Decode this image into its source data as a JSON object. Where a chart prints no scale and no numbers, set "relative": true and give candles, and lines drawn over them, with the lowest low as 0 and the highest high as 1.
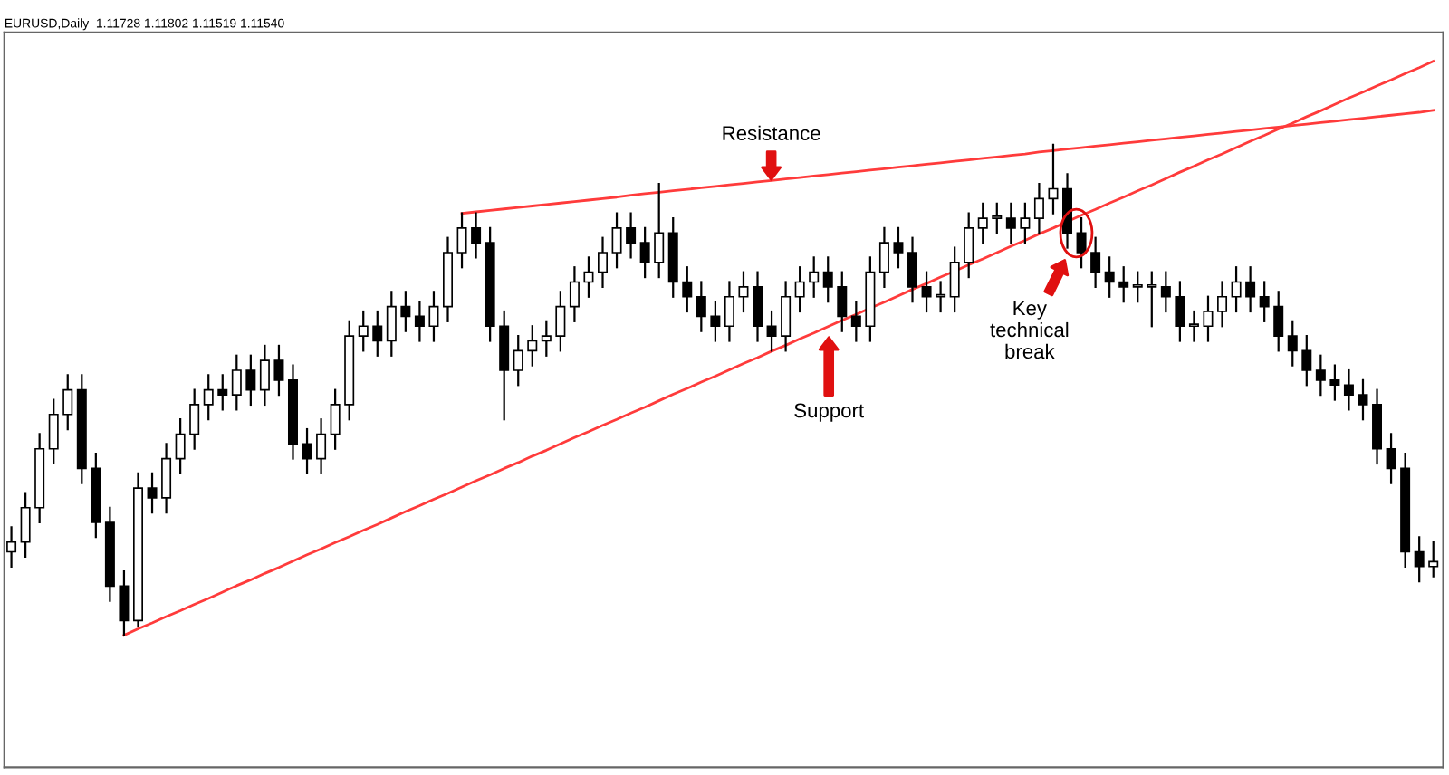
{
  "chart_data": {
    "type": "candlestick",
    "title": "EURUSD,Daily  1.11728 1.11802 1.11519 1.11540",
    "relative": true,
    "categories": [
      null,
      null,
      null,
      null,
      null,
      null,
      null,
      null,
      null,
      null,
      null,
      null,
      null,
      null,
      null,
      null,
      null,
      null,
      null,
      null,
      null,
      null,
      null,
      null,
      null,
      null,
      null,
      null,
      null,
      null,
      null,
      null,
      null,
      null,
      null,
      null,
      null,
      null,
      null,
      null,
      null,
      null,
      null,
      null,
      null,
      null,
      null,
      null,
      null,
      null,
      null,
      null,
      null,
      null,
      null,
      null,
      null,
      null,
      null,
      null,
      null,
      null,
      null,
      null,
      null,
      null,
      null,
      null,
      null,
      null,
      null,
      null,
      null,
      null,
      null,
      null,
      null,
      null,
      null,
      null,
      null,
      null,
      null,
      null,
      null,
      null,
      null,
      null,
      null,
      null,
      null,
      null,
      null,
      null,
      null,
      null,
      null,
      null,
      null,
      null,
      null,
      null
    ],
    "ohlc": [
      [
        0.17,
        0.22,
        0.14,
        0.19
      ],
      [
        0.19,
        0.29,
        0.16,
        0.26
      ],
      [
        0.26,
        0.41,
        0.23,
        0.38
      ],
      [
        0.38,
        0.48,
        0.35,
        0.45
      ],
      [
        0.45,
        0.53,
        0.42,
        0.5
      ],
      [
        0.5,
        0.53,
        0.31,
        0.34
      ],
      [
        0.34,
        0.37,
        0.2,
        0.23
      ],
      [
        0.23,
        0.26,
        0.07,
        0.1
      ],
      [
        0.1,
        0.13,
        0.0,
        0.03
      ],
      [
        0.03,
        0.33,
        0.02,
        0.3
      ],
      [
        0.3,
        0.33,
        0.25,
        0.28
      ],
      [
        0.28,
        0.39,
        0.25,
        0.36
      ],
      [
        0.36,
        0.44,
        0.33,
        0.41
      ],
      [
        0.41,
        0.5,
        0.38,
        0.47
      ],
      [
        0.47,
        0.53,
        0.44,
        0.5
      ],
      [
        0.5,
        0.53,
        0.46,
        0.49
      ],
      [
        0.49,
        0.57,
        0.46,
        0.54
      ],
      [
        0.54,
        0.57,
        0.47,
        0.5
      ],
      [
        0.5,
        0.59,
        0.47,
        0.56
      ],
      [
        0.56,
        0.59,
        0.49,
        0.52
      ],
      [
        0.52,
        0.55,
        0.36,
        0.39
      ],
      [
        0.39,
        0.42,
        0.33,
        0.36
      ],
      [
        0.36,
        0.44,
        0.33,
        0.41
      ],
      [
        0.41,
        0.5,
        0.38,
        0.47
      ],
      [
        0.47,
        0.64,
        0.44,
        0.61
      ],
      [
        0.61,
        0.66,
        0.58,
        0.63
      ],
      [
        0.63,
        0.66,
        0.57,
        0.6
      ],
      [
        0.6,
        0.7,
        0.57,
        0.67
      ],
      [
        0.67,
        0.7,
        0.62,
        0.65
      ],
      [
        0.65,
        0.68,
        0.6,
        0.63
      ],
      [
        0.63,
        0.7,
        0.6,
        0.67
      ],
      [
        0.67,
        0.81,
        0.64,
        0.78
      ],
      [
        0.78,
        0.86,
        0.75,
        0.83
      ],
      [
        0.83,
        0.86,
        0.77,
        0.8
      ],
      [
        0.8,
        0.83,
        0.6,
        0.63
      ],
      [
        0.63,
        0.66,
        0.44,
        0.54
      ],
      [
        0.54,
        0.61,
        0.51,
        0.58
      ],
      [
        0.58,
        0.63,
        0.55,
        0.6
      ],
      [
        0.6,
        0.64,
        0.57,
        0.61
      ],
      [
        0.61,
        0.7,
        0.58,
        0.67
      ],
      [
        0.67,
        0.75,
        0.64,
        0.72
      ],
      [
        0.72,
        0.77,
        0.69,
        0.74
      ],
      [
        0.74,
        0.81,
        0.71,
        0.78
      ],
      [
        0.78,
        0.86,
        0.75,
        0.83
      ],
      [
        0.83,
        0.86,
        0.77,
        0.8
      ],
      [
        0.8,
        0.83,
        0.73,
        0.76
      ],
      [
        0.76,
        0.92,
        0.73,
        0.82
      ],
      [
        0.82,
        0.85,
        0.69,
        0.72
      ],
      [
        0.72,
        0.75,
        0.66,
        0.69
      ],
      [
        0.69,
        0.72,
        0.62,
        0.65
      ],
      [
        0.65,
        0.68,
        0.6,
        0.63
      ],
      [
        0.63,
        0.72,
        0.6,
        0.69
      ],
      [
        0.69,
        0.74,
        0.66,
        0.71
      ],
      [
        0.71,
        0.74,
        0.6,
        0.63
      ],
      [
        0.63,
        0.66,
        0.58,
        0.61
      ],
      [
        0.61,
        0.72,
        0.58,
        0.69
      ],
      [
        0.69,
        0.75,
        0.66,
        0.72
      ],
      [
        0.72,
        0.77,
        0.69,
        0.74
      ],
      [
        0.74,
        0.77,
        0.68,
        0.71
      ],
      [
        0.71,
        0.74,
        0.62,
        0.65
      ],
      [
        0.65,
        0.68,
        0.6,
        0.63
      ],
      [
        0.63,
        0.77,
        0.6,
        0.74
      ],
      [
        0.74,
        0.83,
        0.71,
        0.8
      ],
      [
        0.8,
        0.83,
        0.75,
        0.78
      ],
      [
        0.78,
        0.81,
        0.68,
        0.71
      ],
      [
        0.71,
        0.74,
        0.66,
        0.69
      ],
      [
        0.69,
        0.72,
        0.66,
        0.69
      ],
      [
        0.69,
        0.79,
        0.66,
        0.76
      ],
      [
        0.76,
        0.86,
        0.73,
        0.83
      ],
      [
        0.83,
        0.88,
        0.8,
        0.85
      ],
      [
        0.85,
        0.88,
        0.82,
        0.85
      ],
      [
        0.85,
        0.88,
        0.8,
        0.83
      ],
      [
        0.83,
        0.88,
        0.8,
        0.85
      ],
      [
        0.85,
        0.92,
        0.82,
        0.89
      ],
      [
        0.89,
        1.0,
        0.86,
        0.91
      ],
      [
        0.91,
        0.94,
        0.79,
        0.82
      ],
      [
        0.82,
        0.85,
        0.75,
        0.78
      ],
      [
        0.78,
        0.81,
        0.71,
        0.74
      ],
      [
        0.74,
        0.77,
        0.69,
        0.72
      ],
      [
        0.72,
        0.75,
        0.68,
        0.71
      ],
      [
        0.71,
        0.74,
        0.68,
        0.71
      ],
      [
        0.71,
        0.74,
        0.63,
        0.71
      ],
      [
        0.71,
        0.74,
        0.66,
        0.69
      ],
      [
        0.69,
        0.72,
        0.6,
        0.63
      ],
      [
        0.63,
        0.66,
        0.6,
        0.63
      ],
      [
        0.63,
        0.69,
        0.6,
        0.66
      ],
      [
        0.66,
        0.72,
        0.63,
        0.69
      ],
      [
        0.69,
        0.75,
        0.66,
        0.72
      ],
      [
        0.72,
        0.75,
        0.66,
        0.69
      ],
      [
        0.69,
        0.72,
        0.64,
        0.67
      ],
      [
        0.67,
        0.7,
        0.58,
        0.61
      ],
      [
        0.61,
        0.64,
        0.55,
        0.58
      ],
      [
        0.58,
        0.61,
        0.51,
        0.54
      ],
      [
        0.54,
        0.57,
        0.49,
        0.52
      ],
      [
        0.52,
        0.55,
        0.48,
        0.51
      ],
      [
        0.51,
        0.54,
        0.46,
        0.49
      ],
      [
        0.49,
        0.52,
        0.44,
        0.47
      ],
      [
        0.47,
        0.5,
        0.35,
        0.38
      ],
      [
        0.38,
        0.41,
        0.31,
        0.34
      ],
      [
        0.34,
        0.37,
        0.14,
        0.17
      ],
      [
        0.17,
        0.2,
        0.11,
        0.14
      ],
      [
        0.14,
        0.19,
        0.12,
        0.15
      ]
    ],
    "series": [
      {
        "type": "line",
        "color": "#ff3b3b",
        "values": [
          null,
          null,
          null,
          null,
          null,
          null,
          null,
          null,
          null,
          null,
          null,
          null,
          null,
          null,
          null,
          null,
          null,
          null,
          null,
          null,
          null,
          null,
          null,
          null,
          null,
          null,
          null,
          null,
          null,
          null,
          null,
          null,
          0.86,
          0.863,
          0.866,
          0.869,
          0.872,
          0.875,
          0.878,
          0.881,
          0.884,
          0.887,
          0.89,
          0.893,
          0.897,
          0.9,
          0.903,
          0.906,
          0.909,
          0.912,
          0.915,
          0.918,
          0.921,
          0.924,
          0.927,
          0.93,
          0.933,
          0.936,
          0.939,
          0.942,
          0.945,
          0.948,
          0.951,
          0.954,
          0.957,
          0.96,
          0.963,
          0.966,
          0.969,
          0.972,
          0.975,
          0.978,
          0.981,
          0.985,
          0.988,
          0.991,
          0.994,
          0.997,
          1.0,
          1.003,
          1.006,
          1.009,
          1.012,
          1.015,
          1.018,
          1.021,
          1.024,
          1.027,
          1.03,
          1.033,
          1.036,
          1.039,
          1.042,
          1.045,
          1.048,
          1.051,
          1.054,
          1.057,
          1.06,
          1.063,
          1.066,
          1.07
        ]
      },
      {
        "type": "line",
        "color": "#ff3b3b",
        "values": [
          null,
          null,
          null,
          null,
          null,
          null,
          null,
          null,
          0,
          0.013,
          0.025,
          0.038,
          0.05,
          0.063,
          0.075,
          0.088,
          0.101,
          0.113,
          0.126,
          0.138,
          0.151,
          0.164,
          0.176,
          0.189,
          0.201,
          0.214,
          0.226,
          0.239,
          0.252,
          0.264,
          0.277,
          0.289,
          0.302,
          0.315,
          0.327,
          0.34,
          0.352,
          0.365,
          0.377,
          0.39,
          0.403,
          0.415,
          0.428,
          0.44,
          0.453,
          0.465,
          0.478,
          0.491,
          0.503,
          0.516,
          0.528,
          0.541,
          0.554,
          0.566,
          0.579,
          0.591,
          0.604,
          0.616,
          0.629,
          0.642,
          0.654,
          0.667,
          0.679,
          0.692,
          0.705,
          0.717,
          0.73,
          0.742,
          0.755,
          0.767,
          0.78,
          0.793,
          0.805,
          0.818,
          0.83,
          0.843,
          0.856,
          0.868,
          0.881,
          0.893,
          0.906,
          0.918,
          0.931,
          0.944,
          0.956,
          0.969,
          0.981,
          0.994,
          1.007,
          1.019,
          1.032,
          1.044,
          1.057,
          1.069,
          1.082,
          1.095,
          1.107,
          1.12,
          1.132,
          1.145,
          1.157,
          1.17
        ]
      }
    ],
    "annotations": [
      "Resistance",
      "Support",
      "Key\ntechnical\nbreak"
    ]
  }
}
